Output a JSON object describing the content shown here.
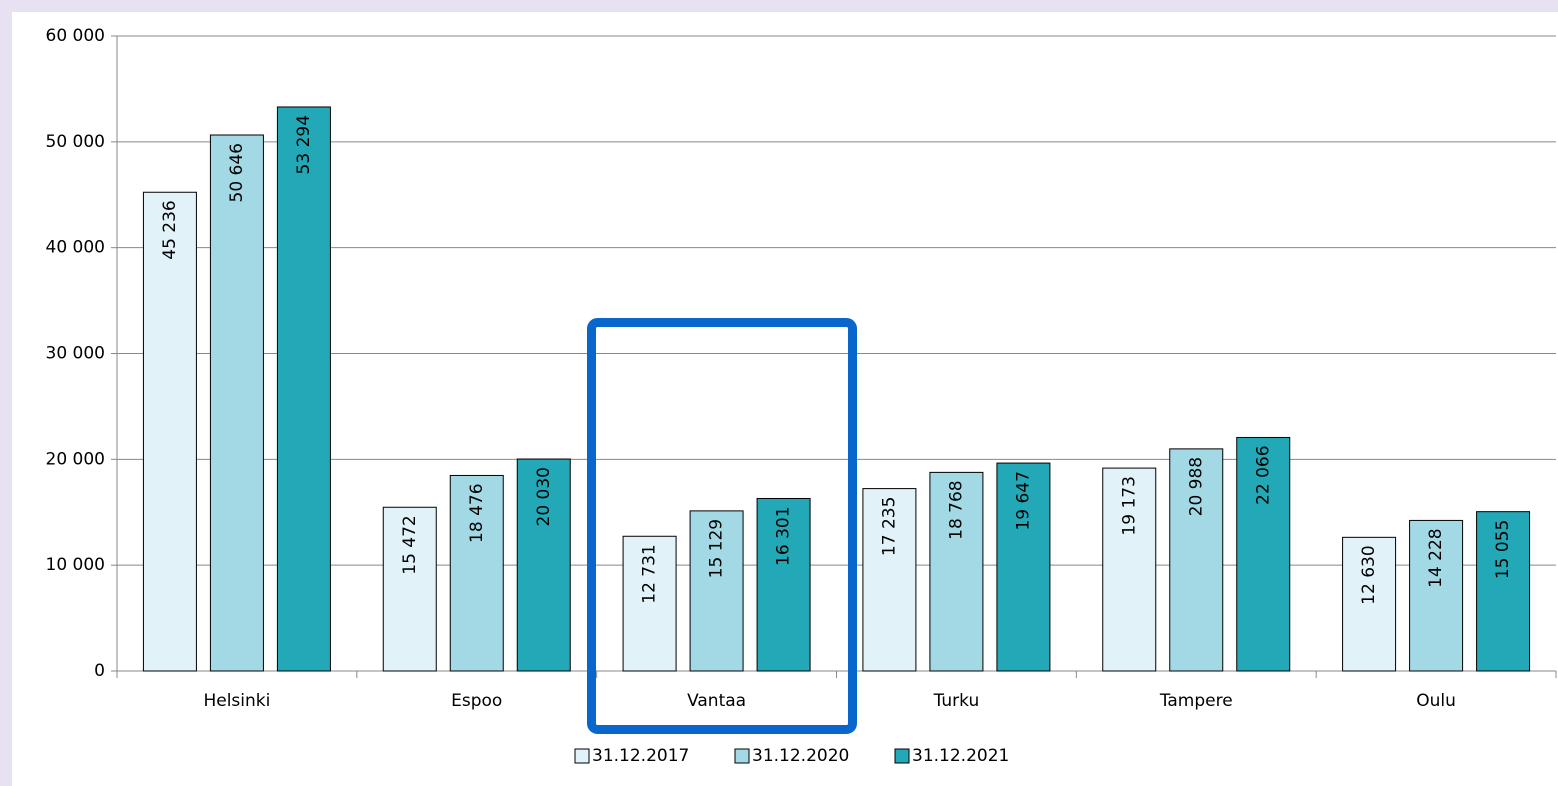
{
  "chart_data": {
    "type": "bar",
    "categories": [
      "Helsinki",
      "Espoo",
      "Vantaa",
      "Turku",
      "Tampere",
      "Oulu"
    ],
    "series": [
      {
        "name": "31.12.2017",
        "color": "#e1f3f8",
        "values": [
          45236,
          15472,
          12731,
          17235,
          19173,
          12630
        ],
        "value_labels": [
          "45 236",
          "15 472",
          "12 731",
          "17 235",
          "19 173",
          "12 630"
        ]
      },
      {
        "name": "31.12.2020",
        "color": "#a2d9e5",
        "values": [
          50646,
          18476,
          15129,
          18768,
          20988,
          14228
        ],
        "value_labels": [
          "50 646",
          "18 476",
          "15 129",
          "18 768",
          "20 988",
          "14 228"
        ]
      },
      {
        "name": "31.12.2021",
        "color": "#22a8b6",
        "values": [
          53294,
          20030,
          16301,
          19647,
          22066,
          15055
        ],
        "value_labels": [
          "53 294",
          "20 030",
          "16 301",
          "19 647",
          "22 066",
          "15 055"
        ]
      }
    ],
    "ylim": [
      0,
      60000
    ],
    "yticks": [
      0,
      {
        "value": 10000,
        "label": "10 000"
      },
      {
        "value": 20000,
        "label": "20 000"
      },
      {
        "value": 30000,
        "label": "30 000"
      },
      {
        "value": 40000,
        "label": "40 000"
      },
      {
        "value": 50000,
        "label": "50 000"
      },
      {
        "value": 60000,
        "label": "60 000"
      }
    ],
    "grid": true,
    "legend": "bottom"
  }
}
